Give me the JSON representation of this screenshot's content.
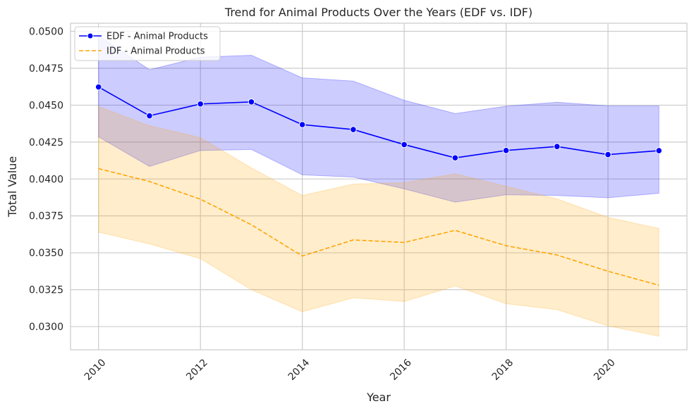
{
  "chart_data": {
    "type": "line",
    "title": "Trend for Animal Products Over the Years (EDF vs. IDF)",
    "xlabel": "Year",
    "ylabel": "Total Value",
    "x": [
      2010,
      2011,
      2012,
      2013,
      2014,
      2015,
      2016,
      2017,
      2018,
      2019,
      2020,
      2021
    ],
    "xticks": [
      2010,
      2012,
      2014,
      2016,
      2018,
      2020
    ],
    "xlim": [
      2009.45,
      2021.55
    ],
    "yticks": [
      0.03,
      0.0325,
      0.035,
      0.0375,
      0.04,
      0.0425,
      0.045,
      0.0475,
      0.05
    ],
    "ytick_labels": [
      "0.0300",
      "0.0325",
      "0.0350",
      "0.0375",
      "0.0400",
      "0.0425",
      "0.0450",
      "0.0475",
      "0.0500"
    ],
    "ylim": [
      0.02843,
      0.05055
    ],
    "grid": true,
    "legend_position": "upper left",
    "series": [
      {
        "name": "EDF - Animal Products",
        "color": "#0000ff",
        "band_color": "#0000ff",
        "style": "solid",
        "marker": "circle",
        "values": [
          0.04623,
          0.04428,
          0.04508,
          0.04522,
          0.04368,
          0.04335,
          0.04233,
          0.04143,
          0.04193,
          0.0422,
          0.04165,
          0.04192
        ],
        "lower": [
          0.04285,
          0.04085,
          0.04193,
          0.042,
          0.04028,
          0.04013,
          0.03933,
          0.03843,
          0.03893,
          0.03888,
          0.03873,
          0.03903
        ],
        "upper": [
          0.0497,
          0.0474,
          0.04825,
          0.04838,
          0.04685,
          0.04663,
          0.04533,
          0.04443,
          0.04493,
          0.0452,
          0.04495,
          0.04495
        ]
      },
      {
        "name": "IDF - Animal Products",
        "color": "#ffa500",
        "band_color": "#ffa500",
        "style": "dashed",
        "marker": "none",
        "values": [
          0.0407,
          0.03983,
          0.03863,
          0.0369,
          0.03478,
          0.03587,
          0.0357,
          0.03652,
          0.03548,
          0.03485,
          0.03375,
          0.0328
        ],
        "lower": [
          0.0364,
          0.0356,
          0.0346,
          0.0325,
          0.031,
          0.03195,
          0.0317,
          0.03275,
          0.03155,
          0.03115,
          0.03005,
          0.02935
        ],
        "upper": [
          0.0449,
          0.0436,
          0.0428,
          0.04075,
          0.03888,
          0.03965,
          0.03975,
          0.04035,
          0.0395,
          0.03865,
          0.0374,
          0.03665
        ]
      }
    ]
  }
}
